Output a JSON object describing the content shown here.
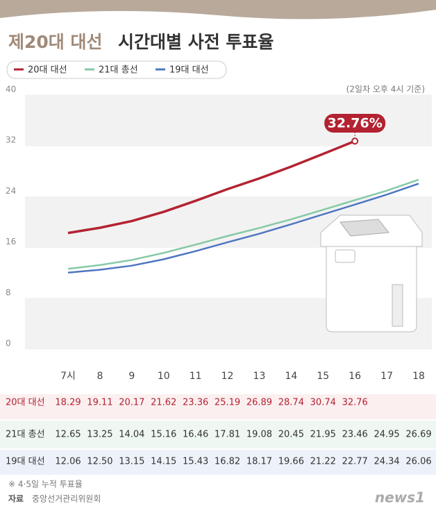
{
  "chart_data": {
    "type": "line",
    "title": [
      "제20대 대선",
      "시간대별 사전 투표율"
    ],
    "subtitle": "(2일차 오후 4시 기준)",
    "categories": [
      "7시",
      "8",
      "9",
      "10",
      "11",
      "12",
      "13",
      "14",
      "15",
      "16",
      "17",
      "18"
    ],
    "series": [
      {
        "name": "20대 대선",
        "color": "#b32231",
        "values": [
          18.29,
          19.11,
          20.17,
          21.62,
          23.36,
          25.19,
          26.89,
          28.74,
          30.74,
          32.76,
          null,
          null
        ],
        "value_labels": [
          "18.29",
          "19.11",
          "20.17",
          "21.62",
          "23.36",
          "25.19",
          "26.89",
          "28.74",
          "30.74",
          "32.76",
          null,
          null
        ]
      },
      {
        "name": "21대 총선",
        "color": "#86c9a6",
        "values": [
          12.65,
          13.25,
          14.04,
          15.16,
          16.46,
          17.81,
          19.08,
          20.45,
          21.95,
          23.46,
          24.95,
          26.69
        ],
        "value_labels": [
          "12.65",
          "13.25",
          "14.04",
          "15.16",
          "16.46",
          "17.81",
          "19.08",
          "20.45",
          "21.95",
          "23.46",
          "24.95",
          "26.69"
        ]
      },
      {
        "name": "19대 대선",
        "color": "#4f76c2",
        "values": [
          12.06,
          12.5,
          13.15,
          14.15,
          15.43,
          16.82,
          18.17,
          19.66,
          21.22,
          22.77,
          24.34,
          26.06
        ],
        "value_labels": [
          "12.06",
          "12.50",
          "13.15",
          "14.15",
          "15.43",
          "16.82",
          "18.17",
          "19.66",
          "21.22",
          "22.77",
          "24.34",
          "26.06"
        ]
      }
    ],
    "ylim": [
      0,
      40
    ],
    "yticks": [
      0,
      8,
      16,
      24,
      32,
      40
    ],
    "annotations": [
      {
        "text": "32.76%"
      }
    ],
    "notes": [
      "※ 4·5일 누적 투표율"
    ],
    "source_label": "자료",
    "source": "중앙선거관리위원회",
    "logo": "news1"
  }
}
